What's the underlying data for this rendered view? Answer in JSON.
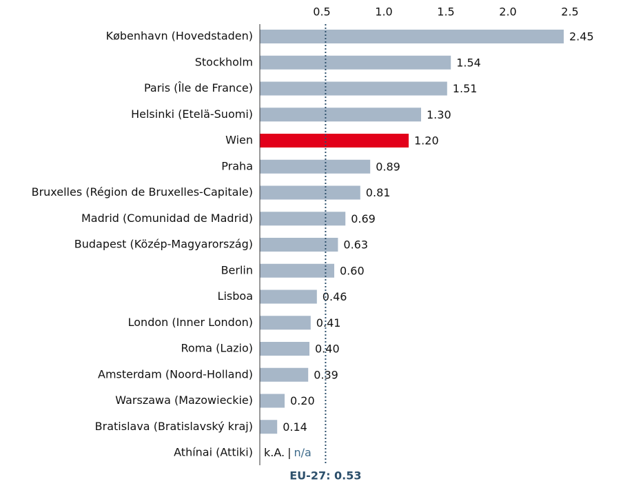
{
  "chart_data": {
    "type": "barh",
    "categories": [
      "København (Hovedstaden)",
      "Stockholm",
      "Paris (Île de France)",
      "Helsinki (Etelä-Suomi)",
      "Wien",
      "Praha",
      "Bruxelles (Région de Bruxelles-Capitale)",
      "Madrid (Comunidad de Madrid)",
      "Budapest (Közép-Magyarország)",
      "Berlin",
      "Lisboa",
      "London (Inner London)",
      "Roma (Lazio)",
      "Amsterdam (Noord-Holland)",
      "Warszawa (Mazowieckie)",
      "Bratislava (Bratislavský kraj)",
      "Athínai (Attiki)"
    ],
    "values": [
      2.45,
      1.54,
      1.51,
      1.3,
      1.2,
      0.89,
      0.81,
      0.69,
      0.63,
      0.6,
      0.46,
      0.41,
      0.4,
      0.39,
      0.2,
      0.14,
      null
    ],
    "value_labels": [
      "2.45",
      "1.54",
      "1.51",
      "1.30",
      "1.20",
      "0.89",
      "0.81",
      "0.69",
      "0.63",
      "0.60",
      "0.46",
      "0.41",
      "0.40",
      "0.39",
      "0.20",
      "0.14",
      null
    ],
    "colors": [
      "#a7b7c8",
      "#a7b7c8",
      "#a7b7c8",
      "#a7b7c8",
      "#e2001a",
      "#a7b7c8",
      "#a7b7c8",
      "#a7b7c8",
      "#a7b7c8",
      "#a7b7c8",
      "#a7b7c8",
      "#a7b7c8",
      "#a7b7c8",
      "#a7b7c8",
      "#a7b7c8",
      "#a7b7c8",
      "#a7b7c8"
    ],
    "missing_label": "k.A.",
    "missing_label_en": "n/a",
    "xlim": [
      0,
      2.9
    ],
    "xticks": [
      0.5,
      {
        "value": 1.0,
        "label": "1.0"
      },
      1.5,
      {
        "value": 2.0,
        "label": "2.0"
      },
      2.5
    ],
    "reference": {
      "value": 0.53,
      "label": "EU-27: 0.53"
    }
  }
}
